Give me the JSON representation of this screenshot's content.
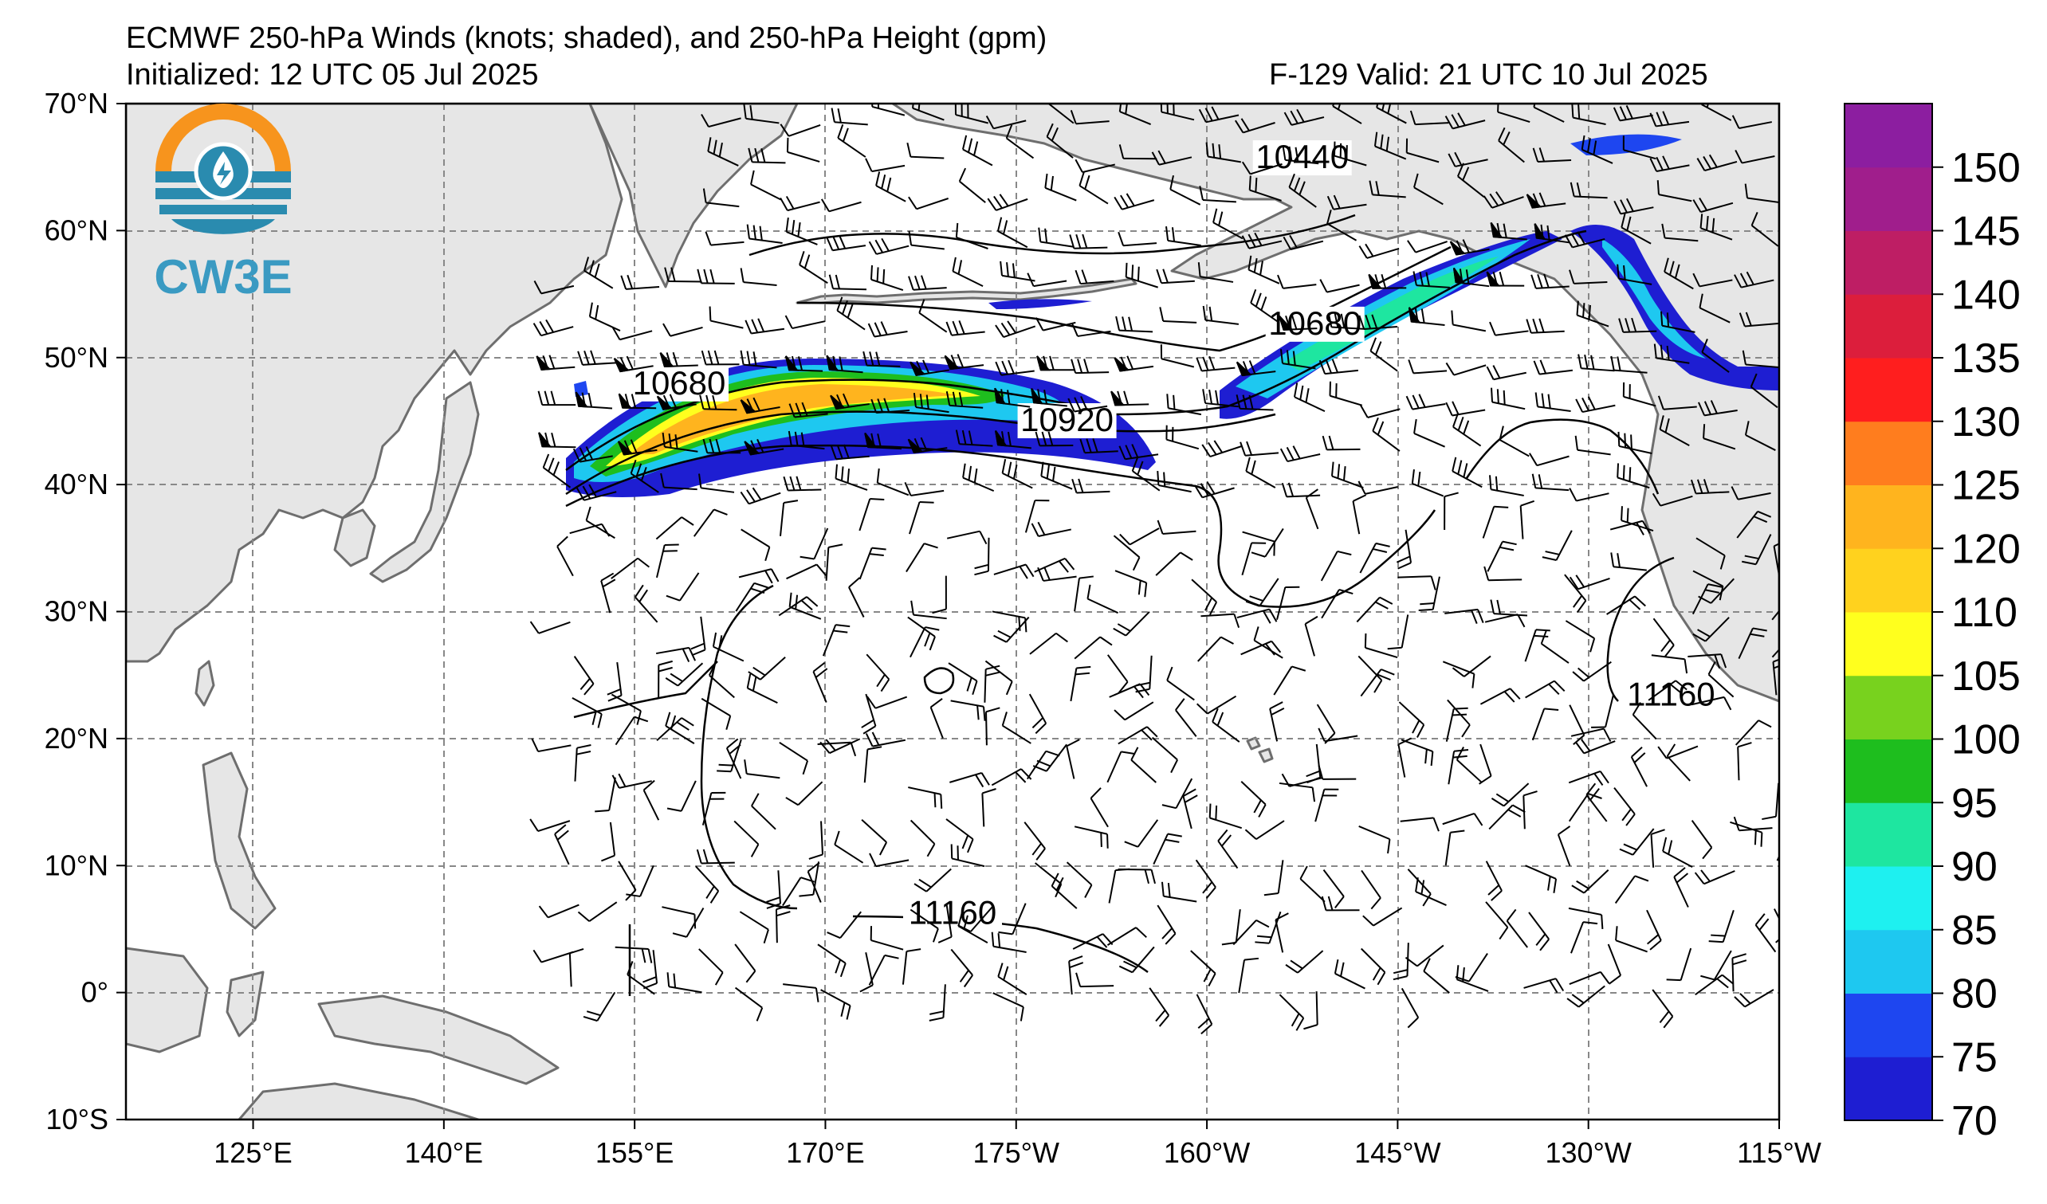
{
  "header": {
    "title": "ECMWF 250-hPa Winds (knots; shaded), and 250-hPa Height (gpm)",
    "initialized": "Initialized: 12 UTC 05 Jul 2025",
    "valid": "F-129  Valid: 21 UTC 10 Jul 2025"
  },
  "logo": {
    "text": "CW3E",
    "colors": {
      "orange": "#F7941D",
      "teal": "#2A8BAF",
      "text": "#3A9AC2"
    }
  },
  "map": {
    "extent": {
      "lon_west": 115,
      "lon_east": 245,
      "lat_south": -10,
      "lat_north": 70
    },
    "lat_ticks": [
      {
        "value": 70,
        "label": "70°N"
      },
      {
        "value": 60,
        "label": "60°N"
      },
      {
        "value": 50,
        "label": "50°N"
      },
      {
        "value": 40,
        "label": "40°N"
      },
      {
        "value": 30,
        "label": "30°N"
      },
      {
        "value": 20,
        "label": "20°N"
      },
      {
        "value": 10,
        "label": "10°N"
      },
      {
        "value": 0,
        "label": "0°"
      },
      {
        "value": -10,
        "label": "10°S"
      }
    ],
    "lon_ticks": [
      {
        "value": 125,
        "label": "125°E"
      },
      {
        "value": 140,
        "label": "140°E"
      },
      {
        "value": 155,
        "label": "155°E"
      },
      {
        "value": 170,
        "label": "170°E"
      },
      {
        "value": 185,
        "label": "175°W"
      },
      {
        "value": 200,
        "label": "160°W"
      },
      {
        "value": 215,
        "label": "145°W"
      },
      {
        "value": 230,
        "label": "130°W"
      },
      {
        "value": 245,
        "label": "115°W"
      }
    ],
    "grid": true,
    "land_color": "#E6E6E6",
    "coast_color": "#6E6E6E"
  },
  "colorbar": {
    "ticks": [
      "70",
      "75",
      "80",
      "85",
      "90",
      "95",
      "100",
      "105",
      "110",
      "120",
      "125",
      "130",
      "135",
      "140",
      "145",
      "150"
    ],
    "colors": [
      "#1E1ED2",
      "#1E46F0",
      "#1EC8F0",
      "#1EF0F0",
      "#1EE6A0",
      "#1EBE1E",
      "#78D21E",
      "#FFFF1E",
      "#FFD21E",
      "#FFB41E",
      "#FF7D1E",
      "#FF1E1E",
      "#DC1E3C",
      "#BE1E64",
      "#A01E8C",
      "#8C1EA0"
    ]
  },
  "contours": {
    "labels": [
      {
        "text": "10440",
        "lon": 207.5,
        "lat": 65.1
      },
      {
        "text": "10680",
        "lon": 208.5,
        "lat": 52.0
      },
      {
        "text": "10680",
        "lon": 158.5,
        "lat": 47.3
      },
      {
        "text": "10920",
        "lon": 189.0,
        "lat": 44.4
      },
      {
        "text": "11160",
        "lon": 236.5,
        "lat": 22.8
      },
      {
        "text": "11160",
        "lon": 180.0,
        "lat": 5.6
      }
    ]
  }
}
